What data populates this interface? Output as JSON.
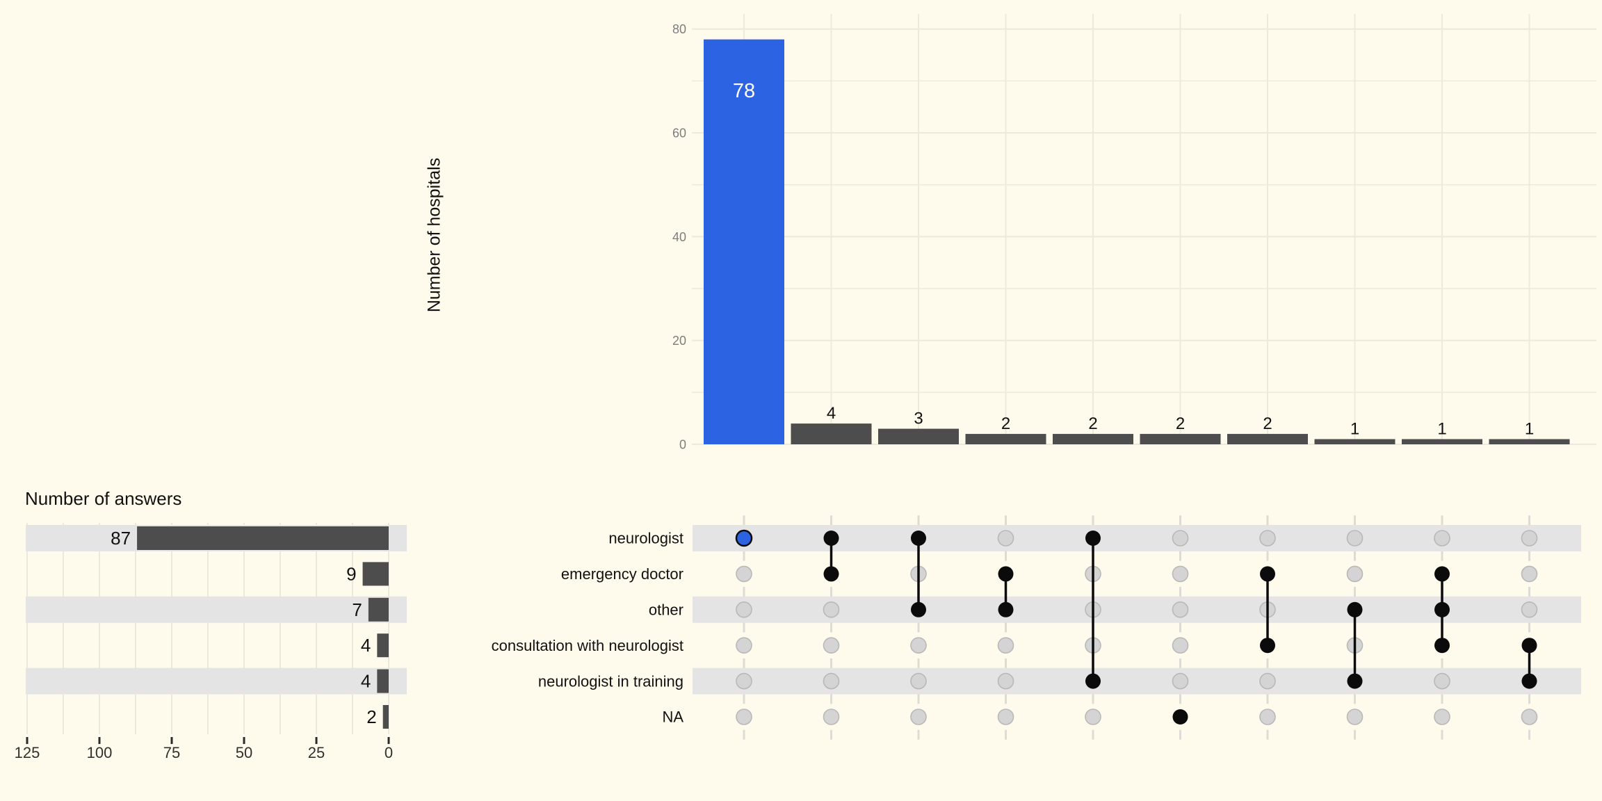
{
  "colors": {
    "background": "#FFFBEC",
    "bar": "#4D4D4D",
    "highlight": "#2B63E3",
    "stripe": "#E4E4E4",
    "inactive_dot_fill": "#D4D4D4",
    "inactive_dot_stroke": "#B8B8B8",
    "active_dot": "#0B0B0B",
    "grid": "#ECEADE",
    "left_grid": "#EBE9DD",
    "column_dash": "#DCDCD4",
    "axis_tick_text_top": "#7D7D7D",
    "axis_tick_text_left": "#303030",
    "tick_mark": "#2B2B2B",
    "label_text": "#111111",
    "bar_label_inside": "#FFFFFF"
  },
  "chart_data": [
    {
      "id": "intersection-sizes",
      "type": "bar",
      "title": "",
      "xlabel": "",
      "ylabel": "Number of hospitals",
      "ylim": [
        0,
        80
      ],
      "yticks": [
        0,
        20,
        40,
        60,
        80
      ],
      "grid": true,
      "legend": false,
      "categories": [
        "1",
        "2",
        "3",
        "4",
        "5",
        "6",
        "7",
        "8",
        "9",
        "10"
      ],
      "values": [
        78,
        4,
        3,
        2,
        2,
        2,
        2,
        1,
        1,
        1
      ],
      "bar_labels": [
        "78",
        "4",
        "3",
        "2",
        "2",
        "2",
        "2",
        "1",
        "1",
        "1"
      ],
      "highlight_index": 0
    },
    {
      "id": "set-sizes",
      "type": "bar",
      "orientation": "horizontal",
      "title": "Number of answers",
      "xlabel": "",
      "ylabel": "",
      "xlim": [
        125,
        0
      ],
      "xticks": [
        125,
        100,
        75,
        50,
        25,
        0
      ],
      "grid": "minor-vertical-every-12.5",
      "legend": false,
      "categories": [
        "neurologist",
        "emergency doctor",
        "other",
        "consultation with neurologist",
        "neurologist in training",
        "NA"
      ],
      "values": [
        87,
        9,
        7,
        4,
        4,
        2
      ],
      "bar_labels": [
        "87",
        "9",
        "7",
        "4",
        "4",
        "2"
      ]
    },
    {
      "id": "membership-matrix",
      "type": "heatmap",
      "rows": [
        "neurologist",
        "emergency doctor",
        "other",
        "consultation with neurologist",
        "neurologist in training",
        "NA"
      ],
      "columns": [
        "1",
        "2",
        "3",
        "4",
        "5",
        "6",
        "7",
        "8",
        "9",
        "10"
      ],
      "values": [
        [
          1,
          1,
          1,
          0,
          1,
          0,
          0,
          0,
          0,
          0
        ],
        [
          0,
          1,
          0,
          1,
          0,
          0,
          1,
          0,
          1,
          0
        ],
        [
          0,
          0,
          1,
          1,
          0,
          0,
          0,
          1,
          1,
          0
        ],
        [
          0,
          0,
          0,
          0,
          0,
          0,
          1,
          0,
          1,
          1
        ],
        [
          0,
          0,
          0,
          0,
          1,
          0,
          0,
          1,
          0,
          1
        ],
        [
          0,
          0,
          0,
          0,
          0,
          1,
          0,
          0,
          0,
          0
        ]
      ],
      "column_sets": [
        [
          0
        ],
        [
          0,
          1
        ],
        [
          0,
          2
        ],
        [
          1,
          2
        ],
        [
          0,
          4
        ],
        [
          5
        ],
        [
          1,
          3
        ],
        [
          2,
          4
        ],
        [
          1,
          2,
          3
        ],
        [
          3,
          4
        ]
      ],
      "highlight_cell": {
        "column": 0,
        "row": 0
      }
    }
  ]
}
